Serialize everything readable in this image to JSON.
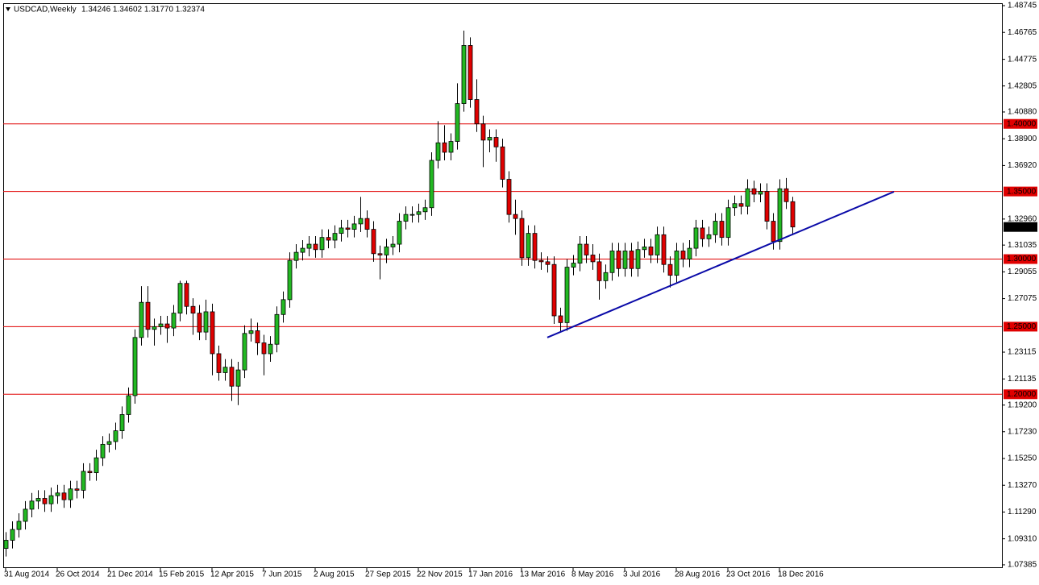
{
  "chart_data": {
    "type": "candlestick",
    "title": "USDCAD,Weekly",
    "subtitle": "1.34246 1.34602 1.31770 1.32374",
    "categories": [
      "31 Aug 2014",
      null,
      null,
      null,
      null,
      null,
      null,
      null,
      "26 Oct 2014",
      null,
      null,
      null,
      null,
      null,
      null,
      null,
      "21 Dec 2014",
      null,
      null,
      null,
      null,
      null,
      null,
      null,
      "15 Feb 2015",
      null,
      null,
      null,
      null,
      null,
      null,
      null,
      "12 Apr 2015",
      null,
      null,
      null,
      null,
      null,
      null,
      null,
      "7 Jun 2015",
      null,
      null,
      null,
      null,
      null,
      null,
      null,
      "2 Aug 2015",
      null,
      null,
      null,
      null,
      null,
      null,
      null,
      "27 Sep 2015",
      null,
      null,
      null,
      null,
      null,
      null,
      null,
      "22 Nov 2015",
      null,
      null,
      null,
      null,
      null,
      null,
      null,
      "17 Jan 2016",
      null,
      null,
      null,
      null,
      null,
      null,
      null,
      "13 Mar 2016",
      null,
      null,
      null,
      null,
      null,
      null,
      null,
      "8 May 2016",
      null,
      null,
      null,
      null,
      null,
      null,
      null,
      "3 Jul 2016",
      null,
      null,
      null,
      null,
      null,
      null,
      null,
      "28 Aug 2016",
      null,
      null,
      null,
      null,
      null,
      null,
      null,
      "23 Oct 2016",
      null,
      null,
      null,
      null,
      null,
      null,
      null,
      "18 Dec 2016",
      null,
      null
    ],
    "open": [
      1.086,
      1.092,
      1.1,
      1.106,
      1.115,
      1.121,
      1.123,
      1.119,
      1.125,
      1.127,
      1.122,
      1.13,
      1.129,
      1.143,
      1.142,
      1.153,
      1.163,
      1.165,
      1.173,
      1.185,
      1.199,
      1.242,
      1.268,
      1.248,
      1.25,
      1.252,
      1.249,
      1.26,
      1.282,
      1.265,
      1.26,
      1.246,
      1.261,
      1.23,
      1.216,
      1.22,
      1.206,
      1.218,
      1.245,
      1.247,
      1.238,
      1.23,
      1.237,
      1.259,
      1.27,
      1.299,
      1.305,
      1.308,
      1.311,
      1.307,
      1.316,
      1.314,
      1.319,
      1.323,
      1.322,
      1.326,
      1.33,
      1.322,
      1.304,
      1.303,
      1.309,
      1.311,
      1.328,
      1.333,
      1.333,
      1.335,
      1.338,
      1.373,
      1.386,
      1.379,
      1.387,
      1.415,
      1.458,
      1.418,
      1.4,
      1.388,
      1.39,
      1.383,
      1.359,
      1.333,
      1.33,
      1.301,
      1.319,
      1.299,
      1.298,
      1.296,
      1.258,
      1.253,
      1.294,
      1.297,
      1.311,
      1.303,
      1.298,
      1.284,
      1.29,
      1.306,
      1.293,
      1.306,
      1.293,
      1.307,
      1.309,
      1.303,
      1.318,
      1.296,
      1.288,
      1.306,
      1.3,
      1.308,
      1.323,
      1.315,
      1.318,
      1.328,
      1.316,
      1.338,
      1.341,
      1.339,
      1.352,
      1.348,
      1.35,
      1.328,
      1.313,
      1.352,
      1.34246
    ],
    "high": [
      1.098,
      1.106,
      1.112,
      1.121,
      1.127,
      1.129,
      1.129,
      1.131,
      1.133,
      1.133,
      1.136,
      1.136,
      1.149,
      1.149,
      1.159,
      1.169,
      1.171,
      1.179,
      1.191,
      1.205,
      1.248,
      1.28,
      1.28,
      1.256,
      1.258,
      1.258,
      1.266,
      1.284,
      1.284,
      1.271,
      1.266,
      1.27,
      1.267,
      1.236,
      1.226,
      1.226,
      1.224,
      1.251,
      1.256,
      1.253,
      1.244,
      1.243,
      1.265,
      1.276,
      1.305,
      1.311,
      1.314,
      1.317,
      1.317,
      1.322,
      1.322,
      1.325,
      1.329,
      1.329,
      1.332,
      1.346,
      1.336,
      1.328,
      1.31,
      1.315,
      1.317,
      1.334,
      1.339,
      1.339,
      1.341,
      1.344,
      1.379,
      1.402,
      1.399,
      1.393,
      1.43,
      1.469,
      1.464,
      1.433,
      1.406,
      1.396,
      1.396,
      1.389,
      1.365,
      1.344,
      1.336,
      1.325,
      1.325,
      1.305,
      1.302,
      1.302,
      1.264,
      1.3,
      1.303,
      1.317,
      1.317,
      1.311,
      1.304,
      1.296,
      1.312,
      1.312,
      1.312,
      1.312,
      1.313,
      1.315,
      1.315,
      1.324,
      1.324,
      1.302,
      1.312,
      1.312,
      1.314,
      1.329,
      1.329,
      1.324,
      1.334,
      1.334,
      1.344,
      1.347,
      1.347,
      1.359,
      1.358,
      1.356,
      1.356,
      1.334,
      1.359,
      1.36,
      1.34602
    ],
    "low": [
      1.08,
      1.086,
      1.094,
      1.1,
      1.109,
      1.115,
      1.113,
      1.113,
      1.119,
      1.116,
      1.116,
      1.123,
      1.123,
      1.136,
      1.136,
      1.147,
      1.157,
      1.159,
      1.167,
      1.179,
      1.193,
      1.236,
      1.242,
      1.236,
      1.244,
      1.238,
      1.243,
      1.254,
      1.259,
      1.244,
      1.24,
      1.24,
      1.214,
      1.21,
      1.21,
      1.195,
      1.192,
      1.212,
      1.239,
      1.229,
      1.214,
      1.224,
      1.231,
      1.253,
      1.264,
      1.293,
      1.299,
      1.302,
      1.301,
      1.301,
      1.308,
      1.308,
      1.313,
      1.316,
      1.316,
      1.32,
      1.316,
      1.298,
      1.285,
      1.297,
      1.303,
      1.305,
      1.322,
      1.327,
      1.327,
      1.329,
      1.332,
      1.367,
      1.373,
      1.373,
      1.381,
      1.409,
      1.412,
      1.394,
      1.368,
      1.379,
      1.372,
      1.353,
      1.327,
      1.318,
      1.295,
      1.295,
      1.293,
      1.292,
      1.29,
      1.252,
      1.246,
      1.247,
      1.288,
      1.291,
      1.297,
      1.292,
      1.27,
      1.278,
      1.284,
      1.287,
      1.287,
      1.287,
      1.287,
      1.301,
      1.297,
      1.297,
      1.29,
      1.279,
      1.282,
      1.294,
      1.294,
      1.302,
      1.309,
      1.309,
      1.312,
      1.31,
      1.31,
      1.332,
      1.333,
      1.333,
      1.342,
      1.342,
      1.322,
      1.307,
      1.307,
      1.337,
      1.3177
    ],
    "close": [
      1.092,
      1.1,
      1.106,
      1.115,
      1.121,
      1.123,
      1.119,
      1.125,
      1.127,
      1.122,
      1.13,
      1.129,
      1.143,
      1.142,
      1.153,
      1.163,
      1.165,
      1.173,
      1.185,
      1.199,
      1.242,
      1.268,
      1.248,
      1.25,
      1.252,
      1.249,
      1.26,
      1.282,
      1.265,
      1.26,
      1.246,
      1.261,
      1.23,
      1.216,
      1.22,
      1.206,
      1.218,
      1.245,
      1.247,
      1.238,
      1.23,
      1.237,
      1.259,
      1.27,
      1.299,
      1.305,
      1.308,
      1.311,
      1.307,
      1.316,
      1.314,
      1.319,
      1.323,
      1.322,
      1.326,
      1.33,
      1.322,
      1.304,
      1.303,
      1.309,
      1.311,
      1.328,
      1.333,
      1.333,
      1.335,
      1.338,
      1.373,
      1.386,
      1.379,
      1.387,
      1.415,
      1.458,
      1.418,
      1.4,
      1.388,
      1.39,
      1.383,
      1.359,
      1.333,
      1.33,
      1.301,
      1.319,
      1.299,
      1.298,
      1.296,
      1.258,
      1.253,
      1.294,
      1.297,
      1.311,
      1.303,
      1.298,
      1.284,
      1.29,
      1.306,
      1.293,
      1.306,
      1.293,
      1.307,
      1.309,
      1.303,
      1.318,
      1.296,
      1.288,
      1.306,
      1.3,
      1.308,
      1.323,
      1.315,
      1.318,
      1.328,
      1.316,
      1.338,
      1.341,
      1.339,
      1.352,
      1.348,
      1.35,
      1.328,
      1.313,
      1.352,
      1.34246,
      1.32374
    ],
    "up_color": "#22b822",
    "down_color": "#e00000",
    "ylim": [
      1.07144,
      1.48924
    ],
    "yticks": [
      1.48745,
      1.46765,
      1.44775,
      1.42805,
      {
        "value": 1.4088,
        "label": "1.40880"
      },
      {
        "value": 1.389,
        "label": "1.38900"
      },
      {
        "value": 1.3692,
        "label": "1.36920"
      },
      {
        "value": 1.3296,
        "label": "1.32960"
      },
      1.31035,
      1.29055,
      1.27075,
      1.23115,
      1.21135,
      {
        "value": 1.192,
        "label": "1.19200"
      },
      {
        "value": 1.1723,
        "label": "1.17230"
      },
      {
        "value": 1.1525,
        "label": "1.15250"
      },
      {
        "value": 1.1327,
        "label": "1.13270"
      },
      {
        "value": 1.1129,
        "label": "1.11290"
      },
      {
        "value": 1.0931,
        "label": "1.09310"
      },
      1.07385
    ],
    "grid": false,
    "levels": [
      {
        "value": 1.4,
        "label": "1.40000"
      },
      {
        "value": 1.35,
        "label": "1.35000"
      },
      {
        "value": 1.3,
        "label": "1.30000"
      },
      {
        "value": 1.25,
        "label": "1.25000"
      },
      {
        "value": 1.2,
        "label": "1.20000"
      }
    ],
    "level_color": "#e00000",
    "last_price": 1.32374,
    "trendline": {
      "x": [
        84,
        137.75
      ],
      "y": [
        1.242,
        1.3498
      ],
      "color": "#0a0aa8"
    }
  }
}
